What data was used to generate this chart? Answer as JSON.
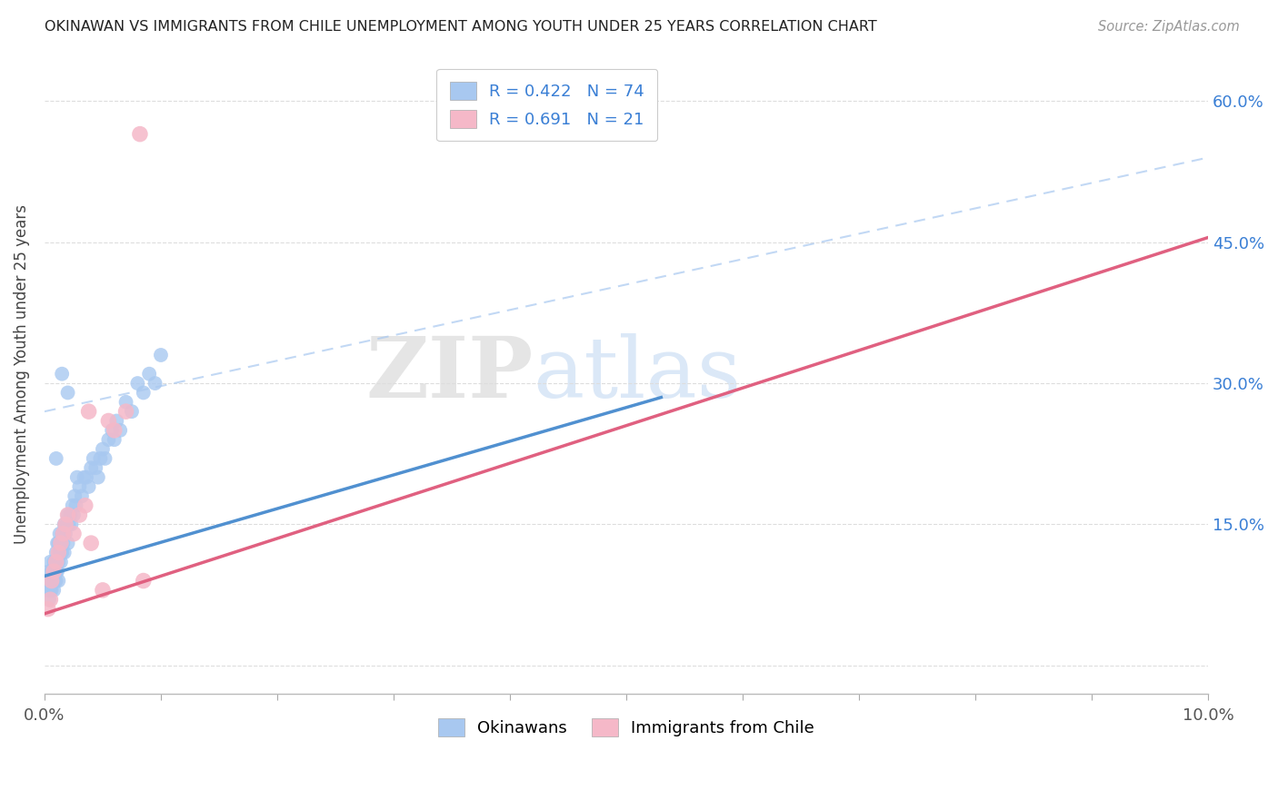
{
  "title": "OKINAWAN VS IMMIGRANTS FROM CHILE UNEMPLOYMENT AMONG YOUTH UNDER 25 YEARS CORRELATION CHART",
  "source": "Source: ZipAtlas.com",
  "ylabel": "Unemployment Among Youth under 25 years",
  "x_min": 0.0,
  "x_max": 0.1,
  "y_min": -0.03,
  "y_max": 0.65,
  "y_ticks": [
    0.0,
    0.15,
    0.3,
    0.45,
    0.6
  ],
  "y_tick_labels_right": [
    "",
    "15.0%",
    "30.0%",
    "45.0%",
    "60.0%"
  ],
  "x_tick_labels": [
    "0.0%",
    "",
    "",
    "",
    "",
    "",
    "",
    "",
    "",
    "",
    "10.0%"
  ],
  "watermark_zip": "ZIP",
  "watermark_atlas": "atlas",
  "legend_r1": "R = 0.422",
  "legend_n1": "N = 74",
  "legend_r2": "R = 0.691",
  "legend_n2": "N = 21",
  "legend_label1": "Okinawans",
  "legend_label2": "Immigrants from Chile",
  "color_blue_scatter": "#a8c8f0",
  "color_pink_scatter": "#f5b8c8",
  "color_blue_line": "#5090d0",
  "color_pink_line": "#e06080",
  "color_dash_line": "#a8c8f0",
  "color_r_value": "#3a7fd5",
  "background_color": "#ffffff",
  "grid_color": "#dddddd",
  "blue_x": [
    0.0002,
    0.0003,
    0.0004,
    0.0004,
    0.0005,
    0.0005,
    0.0005,
    0.0006,
    0.0006,
    0.0007,
    0.0007,
    0.0008,
    0.0008,
    0.0008,
    0.0009,
    0.0009,
    0.001,
    0.001,
    0.001,
    0.001,
    0.001,
    0.0011,
    0.0011,
    0.0012,
    0.0012,
    0.0012,
    0.0013,
    0.0013,
    0.0014,
    0.0014,
    0.0015,
    0.0015,
    0.0016,
    0.0017,
    0.0017,
    0.0018,
    0.0019,
    0.002,
    0.002,
    0.0021,
    0.0022,
    0.0023,
    0.0024,
    0.0025,
    0.0026,
    0.0027,
    0.0028,
    0.003,
    0.0032,
    0.0034,
    0.0036,
    0.0038,
    0.004,
    0.0042,
    0.0044,
    0.0046,
    0.0048,
    0.005,
    0.0052,
    0.0055,
    0.0058,
    0.006,
    0.0062,
    0.0065,
    0.007,
    0.0075,
    0.008,
    0.0085,
    0.009,
    0.0095,
    0.01,
    0.001,
    0.002,
    0.0015
  ],
  "blue_y": [
    0.08,
    0.09,
    0.1,
    0.07,
    0.09,
    0.11,
    0.08,
    0.1,
    0.08,
    0.1,
    0.09,
    0.11,
    0.1,
    0.08,
    0.09,
    0.11,
    0.1,
    0.12,
    0.09,
    0.11,
    0.1,
    0.13,
    0.1,
    0.11,
    0.13,
    0.09,
    0.12,
    0.14,
    0.11,
    0.13,
    0.12,
    0.14,
    0.13,
    0.15,
    0.12,
    0.14,
    0.15,
    0.16,
    0.13,
    0.15,
    0.16,
    0.15,
    0.17,
    0.16,
    0.18,
    0.17,
    0.2,
    0.19,
    0.18,
    0.2,
    0.2,
    0.19,
    0.21,
    0.22,
    0.21,
    0.2,
    0.22,
    0.23,
    0.22,
    0.24,
    0.25,
    0.24,
    0.26,
    0.25,
    0.28,
    0.27,
    0.3,
    0.29,
    0.31,
    0.3,
    0.33,
    0.22,
    0.29,
    0.31
  ],
  "pink_x": [
    0.0003,
    0.0005,
    0.0006,
    0.0008,
    0.001,
    0.0012,
    0.0014,
    0.0016,
    0.0018,
    0.002,
    0.0025,
    0.003,
    0.0035,
    0.0038,
    0.004,
    0.005,
    0.0055,
    0.006,
    0.007,
    0.0082,
    0.0085
  ],
  "pink_y": [
    0.06,
    0.07,
    0.09,
    0.1,
    0.11,
    0.12,
    0.13,
    0.14,
    0.15,
    0.16,
    0.14,
    0.16,
    0.17,
    0.27,
    0.13,
    0.08,
    0.26,
    0.25,
    0.27,
    0.565,
    0.09
  ],
  "trend_blue_x0": 0.0,
  "trend_blue_x1": 0.053,
  "trend_blue_y0": 0.095,
  "trend_blue_y1": 0.285,
  "trend_pink_x0": 0.0,
  "trend_pink_x1": 0.1,
  "trend_pink_y0": 0.055,
  "trend_pink_y1": 0.455,
  "trend_dash_x0": 0.0,
  "trend_dash_x1": 0.1,
  "trend_dash_y0": 0.27,
  "trend_dash_y1": 0.54
}
